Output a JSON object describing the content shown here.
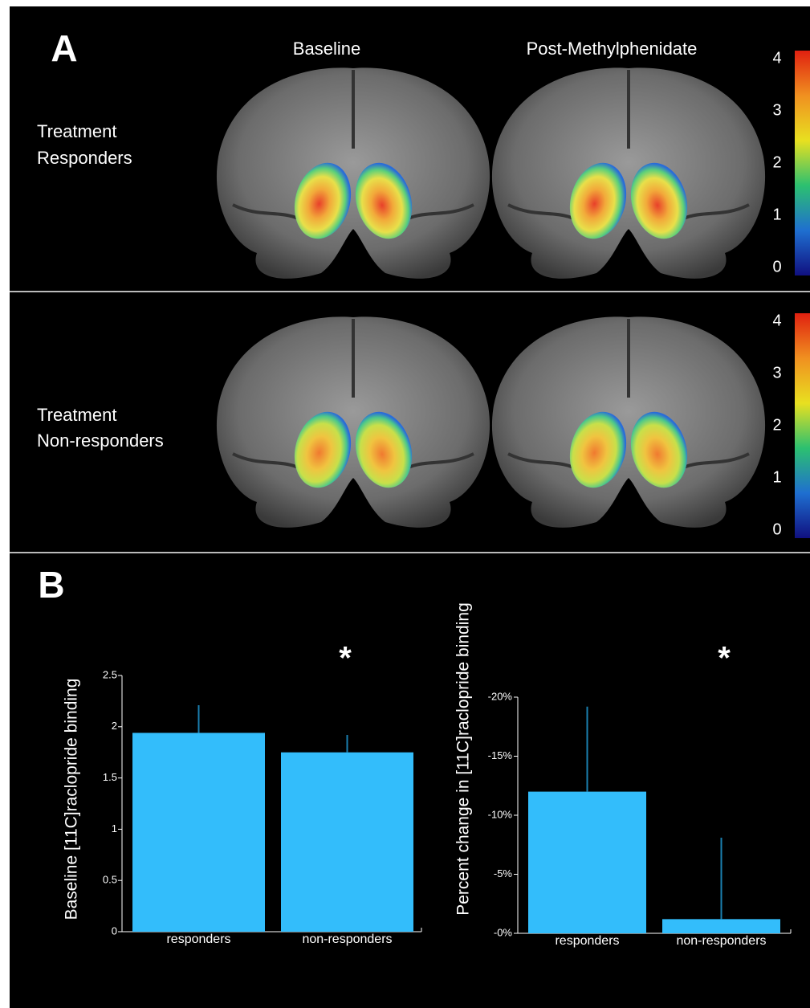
{
  "panel_a": {
    "label": "A",
    "columns": [
      "Baseline",
      "Post-Methylphenidate"
    ],
    "rows": [
      [
        "Treatment",
        "Responders"
      ],
      [
        "Treatment",
        "Non-responders"
      ]
    ],
    "colorbar_lim": [
      0,
      4
    ],
    "colorbar_ticks": [
      0,
      1,
      2,
      3,
      4
    ]
  },
  "panel_b": {
    "label": "B"
  },
  "chart_data": [
    {
      "type": "bar",
      "ylabel": "Baseline [11C]raclopride binding",
      "categories": [
        "responders",
        "non-responders"
      ],
      "values": [
        1.94,
        1.75
      ],
      "errors": [
        0.27,
        0.17
      ],
      "color": "#33bdfb",
      "ylim": [
        0,
        2.5
      ],
      "yticks": [
        0,
        0.5,
        1,
        1.5,
        2,
        2.5
      ],
      "annotation": "*"
    },
    {
      "type": "bar",
      "ylabel": "Percent change in [11C]raclopride binding",
      "categories": [
        "responders",
        "non-responders"
      ],
      "values": [
        -12,
        -1.2
      ],
      "errors": [
        7.2,
        6.9
      ],
      "color": "#33bdfb",
      "ylim": [
        0,
        -20
      ],
      "yticks": [
        {
          "value": -20,
          "label": "-20%"
        },
        {
          "value": -15,
          "label": "-15%"
        },
        {
          "value": -10,
          "label": "-10%"
        },
        {
          "value": -5,
          "label": "-5%"
        },
        {
          "value": 0,
          "label": "-0%"
        }
      ],
      "annotation": "*"
    }
  ]
}
